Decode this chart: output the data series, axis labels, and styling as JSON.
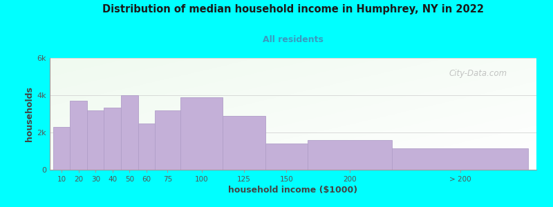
{
  "title": "Distribution of median household income in Humphrey, NY in 2022",
  "subtitle": "All residents",
  "xlabel": "household income ($1000)",
  "ylabel": "households",
  "background_color": "#00FFFF",
  "bar_color": "#c4b0d8",
  "bar_edge_color": "#b09ec8",
  "categories": [
    "10",
    "20",
    "30",
    "40",
    "50",
    "60",
    "75",
    "100",
    "125",
    "150",
    "200",
    "> 200"
  ],
  "bar_lefts": [
    0,
    10,
    20,
    30,
    40,
    50,
    60,
    75,
    100,
    125,
    150,
    200
  ],
  "bar_widths": [
    10,
    10,
    10,
    10,
    10,
    10,
    15,
    25,
    25,
    25,
    50,
    80
  ],
  "values": [
    2300,
    3700,
    3200,
    3350,
    4000,
    2500,
    3200,
    3900,
    2900,
    1400,
    1600,
    1150
  ],
  "xtick_pos": [
    5,
    15,
    25,
    35,
    45,
    55,
    67.5,
    87.5,
    112.5,
    137.5,
    175,
    240
  ],
  "xlim": [
    -2,
    285
  ],
  "ylim": [
    0,
    6000
  ],
  "ytick_labels": [
    "0",
    "2k",
    "4k",
    "6k"
  ],
  "ytick_vals": [
    0,
    2000,
    4000,
    6000
  ],
  "watermark": "City-Data.com",
  "title_color": "#1a1a1a",
  "subtitle_color": "#3a9abf",
  "label_color": "#444444",
  "tick_color": "#555555",
  "watermark_color": "#b0b0b0"
}
